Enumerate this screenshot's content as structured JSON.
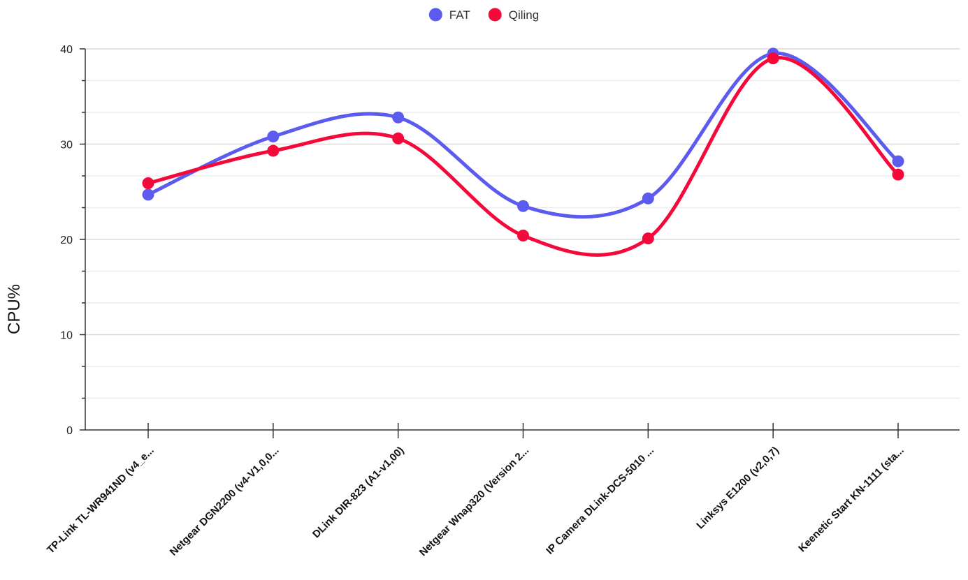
{
  "chart_data": {
    "type": "line",
    "smooth": true,
    "categories": [
      "TP-Link TL-WR941ND (v4_e...",
      "Netgear DGN2200 (v4-V1,0,0...",
      "DLink DIR-823 (A1-v1,00)",
      "Netgear Wnap320 (Version 2...",
      "IP Camera DLink-DCS-5010 ...",
      "Linksys E1200 (v2,0,7)",
      "Keenetic Start KN-1111 (sta..."
    ],
    "series": [
      {
        "name": "FAT",
        "color": "#5b5bf0",
        "values": [
          24.7,
          30.8,
          32.8,
          23.5,
          24.3,
          39.5,
          28.2
        ]
      },
      {
        "name": "Qiling",
        "color": "#f5093a",
        "values": [
          25.9,
          29.3,
          30.6,
          20.4,
          20.1,
          39.0,
          26.8
        ]
      }
    ],
    "ylabel": "CPU%",
    "xlabel": "",
    "ylim": [
      0,
      40
    ],
    "yticks": [
      0,
      10,
      20,
      30,
      40
    ],
    "grid": true,
    "legend_position": "top-center"
  }
}
